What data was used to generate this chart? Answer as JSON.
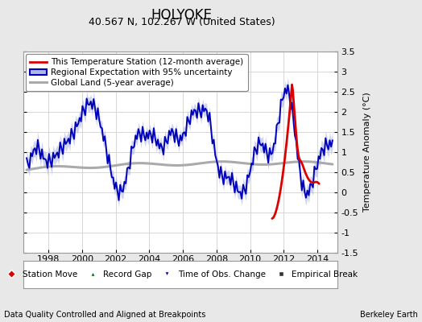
{
  "title": "HOLYOKE",
  "subtitle": "40.567 N, 102.267 W (United States)",
  "ylabel": "Temperature Anomaly (°C)",
  "footer_left": "Data Quality Controlled and Aligned at Breakpoints",
  "footer_right": "Berkeley Earth",
  "xlim": [
    1996.5,
    2015.2
  ],
  "ylim": [
    -1.5,
    3.5
  ],
  "yticks": [
    -1.5,
    -1.0,
    -0.5,
    0.0,
    0.5,
    1.0,
    1.5,
    2.0,
    2.5,
    3.0,
    3.5
  ],
  "ytick_labels": [
    "-1.5",
    "-1",
    "-0.5",
    "0",
    "0.5",
    "1",
    "1.5",
    "2",
    "2.5",
    "3",
    "3.5"
  ],
  "xticks": [
    1998,
    2000,
    2002,
    2004,
    2006,
    2008,
    2010,
    2012,
    2014
  ],
  "bg_color": "#e8e8e8",
  "plot_bg_color": "#ffffff",
  "grid_color": "#d0d0d0",
  "blue_line_color": "#0000bb",
  "blue_fill_color": "#b0b8e8",
  "red_line_color": "#dd0000",
  "gray_line_color": "#aaaaaa",
  "gray_fill_color": "#cccccc",
  "title_fontsize": 12,
  "subtitle_fontsize": 9,
  "tick_fontsize": 8,
  "ylabel_fontsize": 8,
  "legend_fontsize": 7.5,
  "footer_fontsize": 7
}
